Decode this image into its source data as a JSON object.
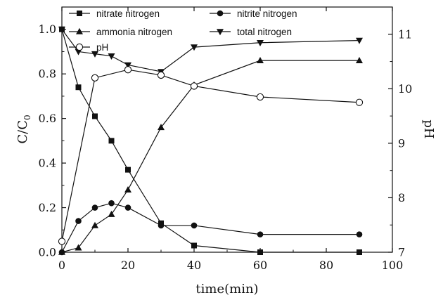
{
  "chart_data": {
    "type": "line",
    "x": [
      0,
      5,
      10,
      15,
      20,
      30,
      40,
      60,
      90
    ],
    "xlabel": "time(min)",
    "ylabel_left": "C/C",
    "ylabel_left_sub": "0",
    "ylabel_right": "pH",
    "xlim": [
      0,
      100
    ],
    "ylim_left": [
      0,
      1.1
    ],
    "ylim_right": [
      7,
      11.5
    ],
    "x_ticks": [
      0,
      20,
      40,
      60,
      80,
      100
    ],
    "y_left_ticks": [
      "0.0",
      "0.2",
      "0.4",
      "0.6",
      "0.8",
      "1.0"
    ],
    "y_right_ticks": [
      "7",
      "8",
      "9",
      "10",
      "11"
    ],
    "grid": false,
    "legend_position": "top",
    "series": [
      {
        "name": "nitrate nitrogen",
        "axis": "left",
        "marker": "square-filled",
        "values": [
          1.0,
          0.74,
          0.61,
          0.5,
          0.37,
          0.13,
          0.03,
          0.0,
          0.0
        ]
      },
      {
        "name": "nitrite nitrogen",
        "axis": "left",
        "marker": "circle-filled",
        "values": [
          0.0,
          0.14,
          0.2,
          0.22,
          0.2,
          0.12,
          0.12,
          0.08,
          0.08
        ]
      },
      {
        "name": "ammonia nitrogen",
        "axis": "left",
        "marker": "triangle-up-filled",
        "values": [
          0.0,
          0.02,
          0.12,
          0.17,
          0.28,
          0.56,
          0.75,
          0.86,
          0.86
        ]
      },
      {
        "name": "total nitrogen",
        "axis": "left",
        "marker": "triangle-down-filled",
        "values": [
          1.0,
          0.9,
          0.89,
          0.88,
          0.84,
          0.81,
          0.92,
          0.94,
          0.95
        ]
      },
      {
        "name": "pH",
        "axis": "right",
        "marker": "circle-open",
        "values": [
          7.2,
          null,
          10.2,
          null,
          10.35,
          10.25,
          10.05,
          9.85,
          9.75
        ]
      }
    ]
  }
}
